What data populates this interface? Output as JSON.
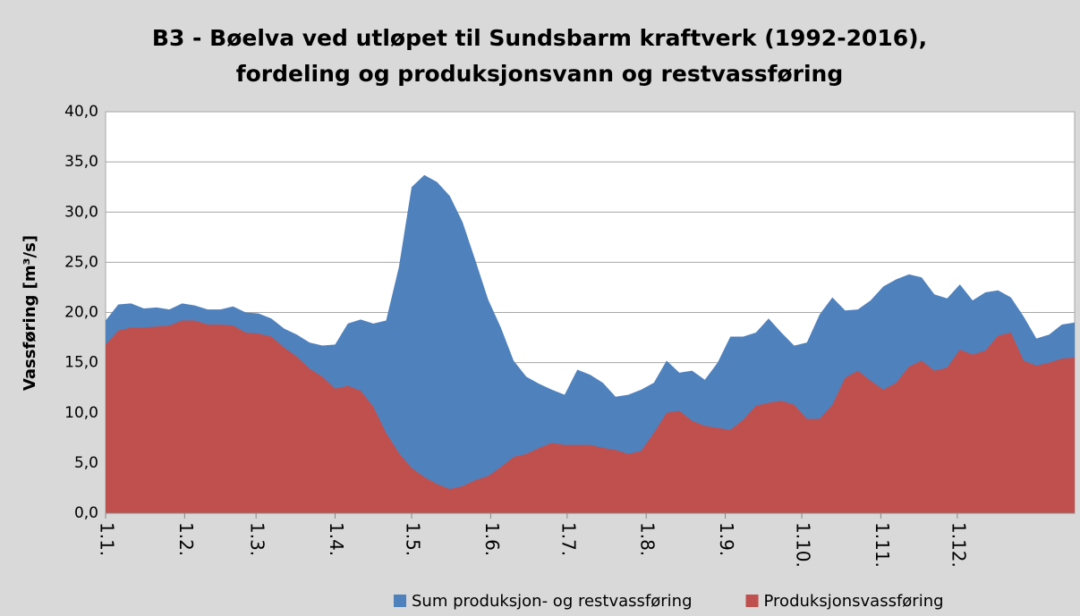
{
  "chart_data": {
    "type": "area",
    "title": [
      "B3 - Bøelva ved utløpet til Sundsbarm kraftverk (1992-2016),",
      "fordeling og produksjonsvann og restvassføring"
    ],
    "y_label": "Vassføring [m³/s]",
    "x": [
      1,
      6,
      11,
      16,
      21,
      26,
      31,
      36,
      41,
      46,
      51,
      56,
      61,
      66,
      71,
      76,
      81,
      86,
      91,
      96,
      101,
      106,
      111,
      116,
      121,
      126,
      131,
      136,
      141,
      146,
      151,
      156,
      161,
      166,
      171,
      176,
      181,
      186,
      191,
      196,
      201,
      206,
      211,
      216,
      221,
      226,
      231,
      236,
      241,
      246,
      251,
      256,
      261,
      266,
      271,
      276,
      281,
      286,
      291,
      296,
      301,
      306,
      311,
      316,
      321,
      326,
      331,
      336,
      341,
      346,
      351,
      356,
      361,
      366,
      371,
      376,
      381
    ],
    "xlim": [
      1,
      381
    ],
    "xticks": [
      {
        "value": 1,
        "label": "1.1."
      },
      {
        "value": 32,
        "label": "1.2."
      },
      {
        "value": 60,
        "label": "1.3."
      },
      {
        "value": 91,
        "label": "1.4."
      },
      {
        "value": 121,
        "label": "1.5."
      },
      {
        "value": 152,
        "label": "1.6."
      },
      {
        "value": 182,
        "label": "1.7."
      },
      {
        "value": 213,
        "label": "1.8."
      },
      {
        "value": 244,
        "label": "1.9."
      },
      {
        "value": 274,
        "label": "1.10."
      },
      {
        "value": 305,
        "label": "1.11."
      },
      {
        "value": 335,
        "label": "1.12."
      }
    ],
    "ylim": [
      0,
      40
    ],
    "yticks": [
      {
        "value": 0,
        "label": "0,0"
      },
      {
        "value": 5,
        "label": "5,0"
      },
      {
        "value": 10,
        "label": "10,0"
      },
      {
        "value": 15,
        "label": "15,0"
      },
      {
        "value": 20,
        "label": "20,0"
      },
      {
        "value": 25,
        "label": "25,0"
      },
      {
        "value": 30,
        "label": "30,0"
      },
      {
        "value": 35,
        "label": "35,0"
      },
      {
        "value": 40,
        "label": "40,0"
      }
    ],
    "grid": true,
    "legend": "bottom",
    "series": [
      {
        "name": "Sum produksjon- og restvassføring",
        "color": "#4f81bd",
        "values": [
          19.2,
          20.8,
          20.9,
          20.4,
          20.5,
          20.3,
          20.9,
          20.7,
          20.3,
          20.3,
          20.6,
          20.0,
          19.9,
          19.4,
          18.4,
          17.8,
          17.0,
          16.7,
          16.8,
          18.9,
          19.3,
          18.9,
          19.2,
          24.5,
          32.5,
          33.7,
          33.0,
          31.6,
          29.0,
          25.2,
          21.3,
          18.5,
          15.2,
          13.6,
          12.9,
          12.3,
          11.8,
          14.3,
          13.8,
          13.0,
          11.6,
          11.8,
          12.3,
          13.0,
          15.2,
          14.0,
          14.2,
          13.3,
          15.0,
          17.6,
          17.6,
          18.0,
          19.4,
          18.0,
          16.7,
          17.0,
          19.8,
          21.5,
          20.2,
          20.3,
          21.2,
          22.6,
          23.3,
          23.8,
          23.5,
          21.8,
          21.4,
          22.8,
          21.2,
          22.0,
          22.2,
          21.5,
          19.6,
          17.4,
          17.8,
          18.8,
          19.0
        ]
      },
      {
        "name": "Produksjonsvassføring",
        "color": "#c0504d",
        "values": [
          16.8,
          18.2,
          18.5,
          18.5,
          18.6,
          18.7,
          19.2,
          19.2,
          18.8,
          18.8,
          18.7,
          18.0,
          17.9,
          17.6,
          16.5,
          15.6,
          14.4,
          13.6,
          12.4,
          12.7,
          12.2,
          10.6,
          8.0,
          6.0,
          4.5,
          3.6,
          2.9,
          2.4,
          2.7,
          3.3,
          3.7,
          4.6,
          5.6,
          5.9,
          6.5,
          7.0,
          6.8,
          6.8,
          6.8,
          6.5,
          6.3,
          5.9,
          6.2,
          8.0,
          10.0,
          10.2,
          9.2,
          8.7,
          8.5,
          8.3,
          9.3,
          10.7,
          11.0,
          11.2,
          10.8,
          9.4,
          9.4,
          10.8,
          13.5,
          14.2,
          13.2,
          12.3,
          13.0,
          14.6,
          15.2,
          14.2,
          14.5,
          16.3,
          15.8,
          16.2,
          17.7,
          18.0,
          15.2,
          14.7,
          15.0,
          15.4,
          15.5
        ]
      }
    ]
  }
}
